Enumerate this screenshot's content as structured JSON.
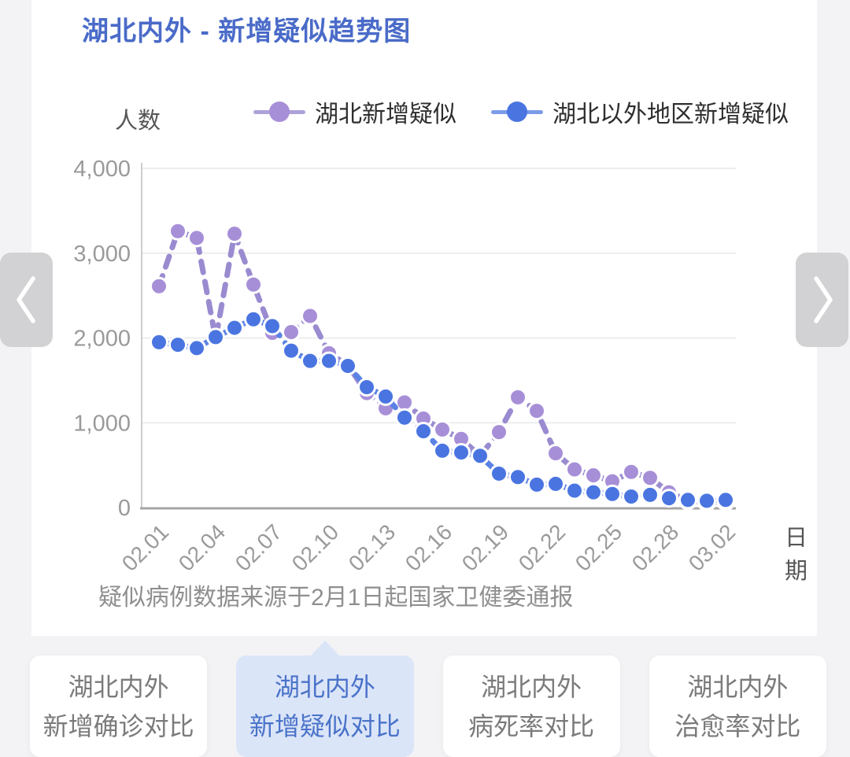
{
  "page_title": "湖北内外 - 新增疑似趋势图",
  "footnote": "疑似病例数据来源于2月1日起国家卫健委通报",
  "colors": {
    "title_blue": "#4a6bc8",
    "hubei_purple_dot": "#a78fd8",
    "hubei_purple_line": "#9a8bd0",
    "outside_blue_dot": "#4a75e1",
    "outside_blue_line": "#5b82e4",
    "active_tab_bg": "#dbe5f8",
    "active_tab_text": "#4a73c9"
  },
  "chart_data": {
    "type": "line",
    "title": "湖北内外 - 新增疑似趋势图",
    "ylabel": "人数",
    "xlabel": "日期",
    "ylim": [
      0,
      4000
    ],
    "yticks": [
      0,
      1000,
      2000,
      3000,
      4000
    ],
    "ytick_labels": [
      "0",
      "1,000",
      "2,000",
      "3,000",
      "4,000"
    ],
    "grid": true,
    "legend_position": "top",
    "line_style": "dashed",
    "categories": [
      "02.01",
      "02.02",
      "02.03",
      "02.04",
      "02.05",
      "02.06",
      "02.07",
      "02.08",
      "02.09",
      "02.10",
      "02.11",
      "02.12",
      "02.13",
      "02.14",
      "02.15",
      "02.16",
      "02.17",
      "02.18",
      "02.19",
      "02.20",
      "02.21",
      "02.22",
      "02.23",
      "02.24",
      "02.25",
      "02.26",
      "02.27",
      "02.28",
      "02.29",
      "03.01",
      "03.02"
    ],
    "xtick_every": 3,
    "series": [
      {
        "name": "湖北新增疑似",
        "dot_color": "#a78fd8",
        "line_color": "#9a8bd0",
        "values": [
          2610,
          3260,
          3180,
          1990,
          3230,
          2630,
          2060,
          2070,
          2260,
          1820,
          1680,
          1350,
          1170,
          1240,
          1050,
          920,
          810,
          610,
          890,
          1300,
          1140,
          640,
          450,
          380,
          310,
          420,
          350,
          180,
          80,
          60,
          70
        ]
      },
      {
        "name": "湖北以外地区新增疑似",
        "dot_color": "#4a75e1",
        "line_color": "#5b82e4",
        "values": [
          1950,
          1920,
          1880,
          2010,
          2120,
          2220,
          2140,
          1850,
          1730,
          1730,
          1670,
          1420,
          1310,
          1060,
          900,
          670,
          650,
          610,
          400,
          360,
          270,
          280,
          200,
          180,
          160,
          130,
          150,
          110,
          90,
          80,
          90
        ]
      }
    ]
  },
  "tabs": {
    "active_index": 1,
    "items": [
      {
        "line1": "湖北内外",
        "line2": "新增确诊对比"
      },
      {
        "line1": "湖北内外",
        "line2": "新增疑似对比"
      },
      {
        "line1": "湖北内外",
        "line2": "病死率对比"
      },
      {
        "line1": "湖北内外",
        "line2": "治愈率对比"
      }
    ]
  }
}
